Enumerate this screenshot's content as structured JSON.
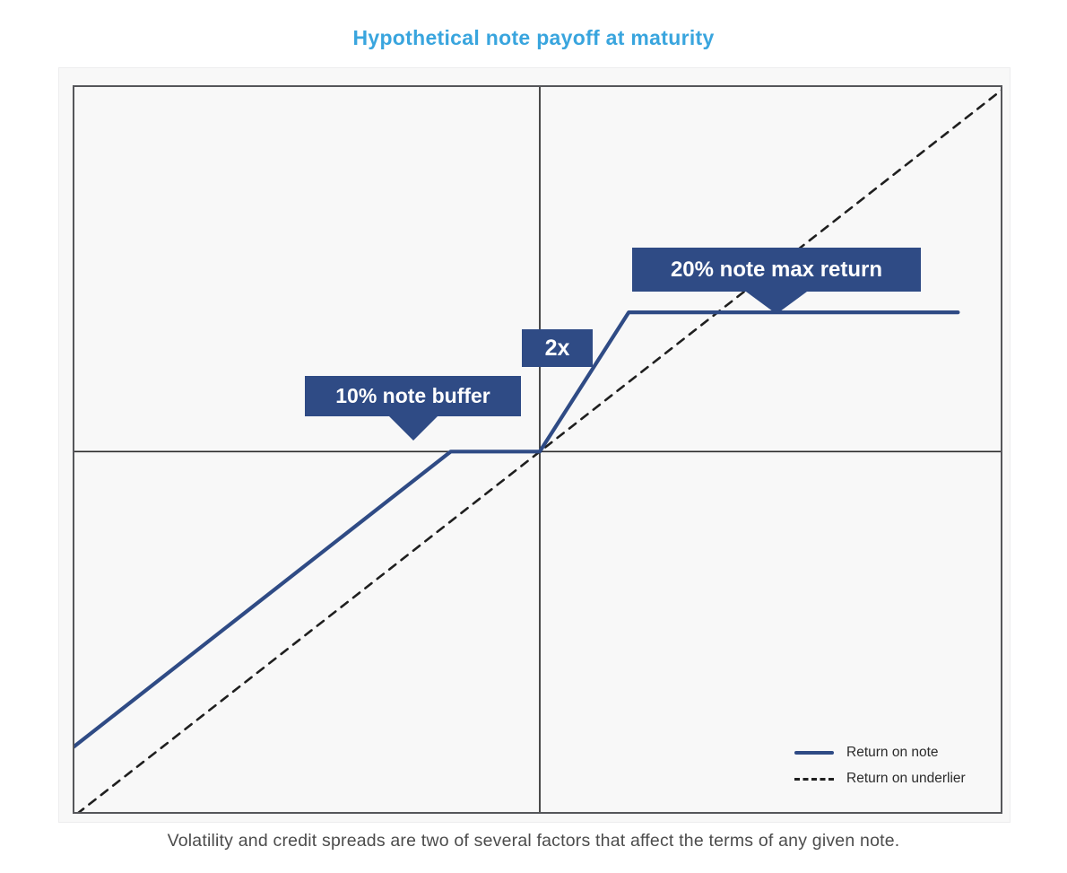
{
  "page": {
    "caption": "Volatility and credit spreads are two of several factors that affect the terms of any given note."
  },
  "colors": {
    "title_blue": "#39a5de",
    "note_blue": "#2f4b85",
    "underlier_black": "#1f1f1f",
    "panel_background": "#f8f8f8",
    "axis": "#2b2b2b",
    "plot_border": "#55565a",
    "caption_gray": "#4c4c4c",
    "legend_text": "#2b2b2b",
    "callout_text": "#ffffff"
  },
  "chart_data": {
    "type": "line",
    "title": "Hypothetical note payoff at maturity",
    "xlabel": "",
    "ylabel": "",
    "xlim": [
      -52.5,
      52
    ],
    "ylim": [
      -52,
      52.6
    ],
    "grid": false,
    "axes_through_origin": true,
    "legend_position": "bottom-right-inside",
    "note_terms": {
      "buffer_pct": 10,
      "upside_leverage": "2x",
      "max_return_pct": 20
    },
    "series": [
      {
        "name": "Return on note",
        "style": "solid",
        "color": "#2f4b85",
        "points": [
          [
            -52.5,
            -42.5
          ],
          [
            -10,
            0
          ],
          [
            0,
            0
          ],
          [
            10,
            20
          ],
          [
            47,
            20
          ]
        ]
      },
      {
        "name": "Return on underlier",
        "style": "dashed",
        "color": "#1f1f1f",
        "points": [
          [
            -52,
            -52
          ],
          [
            52,
            52
          ]
        ]
      }
    ],
    "annotations": [
      {
        "label": "20% note max return",
        "pointer": "down"
      },
      {
        "label": "2x",
        "pointer": "none"
      },
      {
        "label": "10% note buffer",
        "pointer": "down"
      }
    ]
  }
}
